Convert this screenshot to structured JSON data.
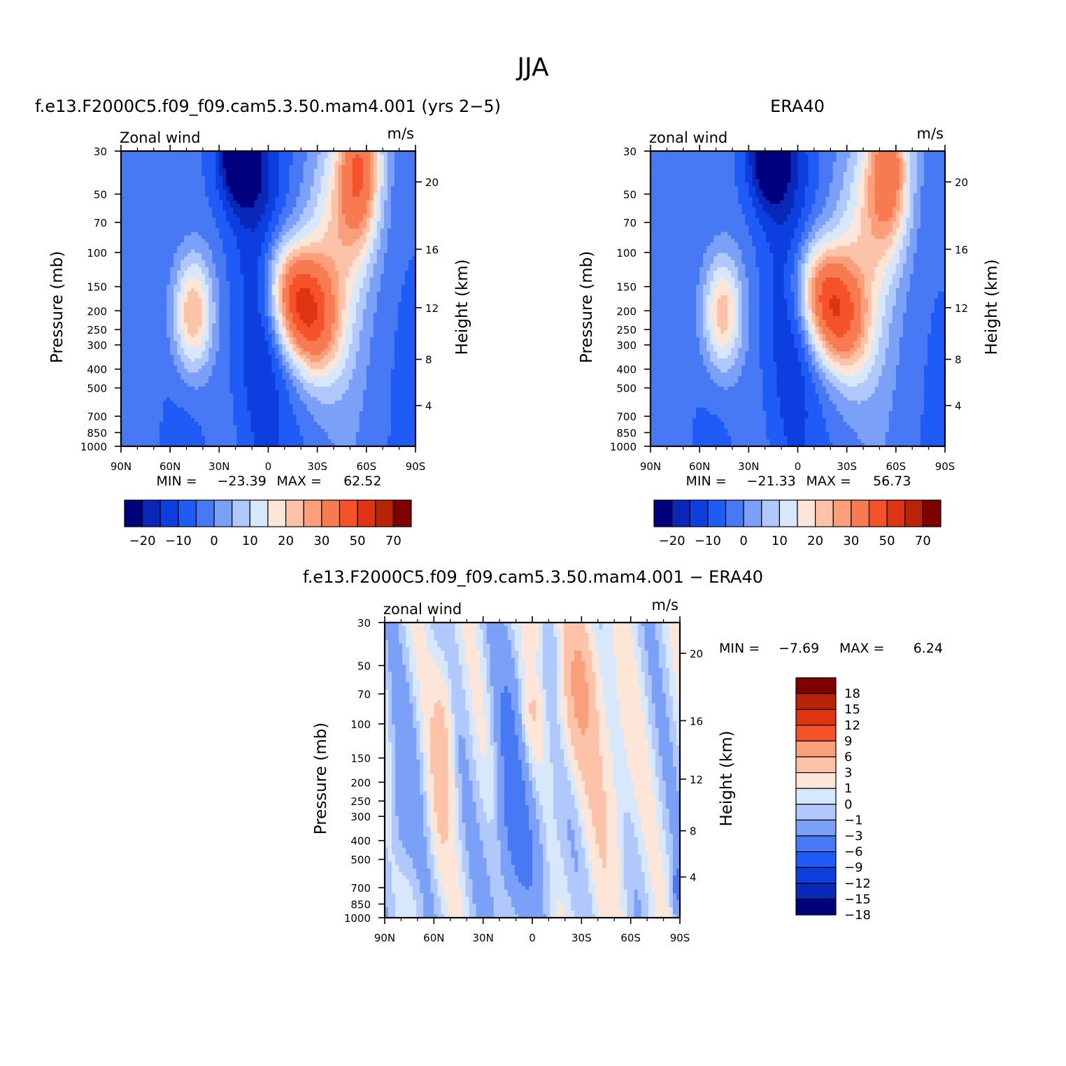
{
  "figure": {
    "title": "JJA"
  },
  "chart_data": [
    {
      "type": "heatmap",
      "title": "f.e13.F2000C5.f09_f09.cam5.3.50.mam4.001 (yrs 2-5)",
      "field_label": "Zonal wind",
      "units": "m/s",
      "xlabel": "",
      "ylabel": "Pressure (mb)",
      "ylabel_right": "Height (km)",
      "x_ticks": [
        "90N",
        "60N",
        "30N",
        "0",
        "30S",
        "60S",
        "90S"
      ],
      "y_ticks": [
        30,
        50,
        70,
        100,
        150,
        200,
        250,
        300,
        400,
        500,
        700,
        850,
        1000
      ],
      "y_right_ticks": [
        4,
        8,
        12,
        16,
        20
      ],
      "xlim": [
        90,
        -90
      ],
      "ylim": [
        1000,
        30
      ],
      "y_scale": "log",
      "min_label": "MIN =",
      "min_value": "-23.39",
      "max_label": "MAX =",
      "max_value": "62.52",
      "colorbar_levels": [
        -25,
        -20,
        -15,
        -10,
        -5,
        0,
        5,
        10,
        15,
        20,
        25,
        30,
        40,
        50,
        60,
        70,
        80
      ],
      "colorbar_tick_labels": [
        "-20",
        "-10",
        "0",
        "10",
        "20",
        "30",
        "50",
        "70"
      ],
      "colorbar_orientation": "horizontal"
    },
    {
      "type": "heatmap",
      "title": "ERA40",
      "field_label": "zonal wind",
      "units": "m/s",
      "xlabel": "",
      "ylabel": "Pressure (mb)",
      "ylabel_right": "Height (km)",
      "x_ticks": [
        "90N",
        "60N",
        "30N",
        "0",
        "30S",
        "60S",
        "90S"
      ],
      "y_ticks": [
        30,
        50,
        70,
        100,
        150,
        200,
        250,
        300,
        400,
        500,
        700,
        850,
        1000
      ],
      "y_right_ticks": [
        4,
        8,
        12,
        16,
        20
      ],
      "xlim": [
        90,
        -90
      ],
      "ylim": [
        1000,
        30
      ],
      "y_scale": "log",
      "min_label": "MIN =",
      "min_value": "-21.33",
      "max_label": "MAX =",
      "max_value": "56.73",
      "colorbar_levels": [
        -25,
        -20,
        -15,
        -10,
        -5,
        0,
        5,
        10,
        15,
        20,
        25,
        30,
        40,
        50,
        60,
        70,
        80
      ],
      "colorbar_tick_labels": [
        "-20",
        "-10",
        "0",
        "10",
        "20",
        "30",
        "50",
        "70"
      ],
      "colorbar_orientation": "horizontal"
    },
    {
      "type": "heatmap",
      "title": "f.e13.F2000C5.f09_f09.cam5.3.50.mam4.001 - ERA40",
      "field_label": "zonal wind",
      "units": "m/s",
      "xlabel": "",
      "ylabel": "Pressure (mb)",
      "ylabel_right": "Height (km)",
      "x_ticks": [
        "90N",
        "60N",
        "30N",
        "0",
        "30S",
        "60S",
        "90S"
      ],
      "y_ticks": [
        30,
        50,
        70,
        100,
        150,
        200,
        250,
        300,
        400,
        500,
        700,
        850,
        1000
      ],
      "y_right_ticks": [
        4,
        8,
        12,
        16,
        20
      ],
      "xlim": [
        90,
        -90
      ],
      "ylim": [
        1000,
        30
      ],
      "y_scale": "log",
      "min_label": "MIN =",
      "min_value": "-7.69",
      "max_label": "MAX =",
      "max_value": "6.24",
      "colorbar_levels": [
        -18,
        -15,
        -12,
        -9,
        -6,
        -3,
        -1,
        0,
        1,
        3,
        6,
        9,
        12,
        15,
        18
      ],
      "colorbar_tick_labels": [
        "18",
        "15",
        "12",
        "9",
        "6",
        "3",
        "1",
        "0",
        "-1",
        "-3",
        "-6",
        "-9",
        "-12",
        "-15",
        "-18"
      ],
      "colorbar_orientation": "vertical"
    }
  ],
  "colors": {
    "abs_palette": [
      "#00007f",
      "#0a28b8",
      "#0c3ee0",
      "#1f5bf5",
      "#4879f5",
      "#7aa0f8",
      "#b0c8fb",
      "#d8e8fc",
      "#fde6d8",
      "#fcc3a8",
      "#fa9f7a",
      "#f87a50",
      "#f5522a",
      "#df3412",
      "#b92306",
      "#7f0000"
    ],
    "diff_palette": [
      "#00007f",
      "#0a28b8",
      "#0c3ee0",
      "#1f5bf5",
      "#4879f5",
      "#7aa0f8",
      "#b0c8fb",
      "#d8e8fc",
      "#fde6d8",
      "#fcc3a8",
      "#fa9f7a",
      "#f5522a",
      "#df3412",
      "#b92306",
      "#7f0000"
    ]
  }
}
